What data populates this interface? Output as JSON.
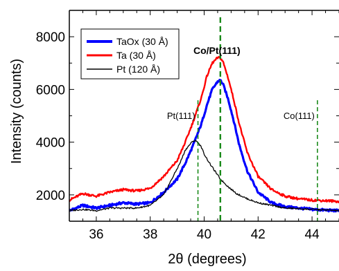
{
  "chart_data": {
    "type": "line",
    "xlabel": "2θ (degrees)",
    "ylabel": "Intensity (counts)",
    "xlim": [
      35,
      45
    ],
    "ylim": [
      1000,
      9000
    ],
    "x_ticks": [
      36,
      38,
      40,
      42,
      44
    ],
    "x_tick_labels": [
      "36",
      "38",
      "40",
      "42",
      "44"
    ],
    "y_ticks": [
      2000,
      4000,
      6000,
      8000
    ],
    "y_tick_labels": [
      "2000",
      "4000",
      "6000",
      "8000"
    ],
    "grid": false,
    "legend_position": "top-left",
    "series": [
      {
        "name": "TaOx (30 Å)",
        "color": "#0000ff",
        "x": [
          35.0,
          35.5,
          36.0,
          36.5,
          37.0,
          37.5,
          38.0,
          38.5,
          39.0,
          39.3,
          39.6,
          39.9,
          40.1,
          40.3,
          40.5,
          40.6,
          40.7,
          40.9,
          41.1,
          41.3,
          41.6,
          42.0,
          42.5,
          43.0,
          43.5,
          44.0,
          44.5,
          45.0
        ],
        "y": [
          1400,
          1600,
          1500,
          1600,
          1700,
          1650,
          1700,
          2100,
          2600,
          3200,
          3900,
          4700,
          5400,
          6000,
          6300,
          6350,
          6200,
          5600,
          4800,
          3900,
          2900,
          2100,
          1700,
          1550,
          1500,
          1450,
          1420,
          1400
        ]
      },
      {
        "name": "Ta (30 Å)",
        "color": "#ff0000",
        "x": [
          35.0,
          35.5,
          36.0,
          36.5,
          37.0,
          37.5,
          38.0,
          38.5,
          39.0,
          39.3,
          39.6,
          39.9,
          40.1,
          40.3,
          40.5,
          40.6,
          40.7,
          40.9,
          41.1,
          41.3,
          41.6,
          42.0,
          42.5,
          43.0,
          43.5,
          44.0,
          44.5,
          45.0
        ],
        "y": [
          1800,
          2050,
          1950,
          2100,
          2200,
          2150,
          2250,
          2700,
          3300,
          4000,
          4800,
          5700,
          6500,
          7000,
          7200,
          7200,
          7050,
          6400,
          5600,
          4700,
          3600,
          2700,
          2200,
          1950,
          1850,
          1800,
          1780,
          1750
        ]
      },
      {
        "name": "Pt (120 Å)",
        "color": "#000000",
        "x": [
          35.0,
          35.5,
          36.0,
          36.5,
          37.0,
          37.5,
          38.0,
          38.5,
          38.8,
          39.1,
          39.3,
          39.5,
          39.6,
          39.7,
          39.8,
          39.9,
          40.0,
          40.2,
          40.4,
          40.6,
          40.9,
          41.2,
          41.6,
          42.0,
          42.5,
          43.0,
          44.0,
          45.0
        ],
        "y": [
          1400,
          1450,
          1400,
          1500,
          1500,
          1500,
          1600,
          2000,
          2600,
          3200,
          3700,
          3950,
          4050,
          4050,
          3950,
          3800,
          3550,
          3200,
          2900,
          2600,
          2300,
          2050,
          1850,
          1700,
          1600,
          1500,
          1450,
          1400
        ]
      }
    ],
    "reference_lines": [
      {
        "label": "Pt(111)",
        "x": 39.77,
        "color": "#1a8a1a",
        "style": "dashed"
      },
      {
        "label": "Co/Pt(111)",
        "x": 40.6,
        "color": "#1a8a1a",
        "style": "dashed"
      },
      {
        "label": "Co(111)",
        "x": 44.2,
        "color": "#1a8a1a",
        "style": "dashed"
      }
    ]
  }
}
